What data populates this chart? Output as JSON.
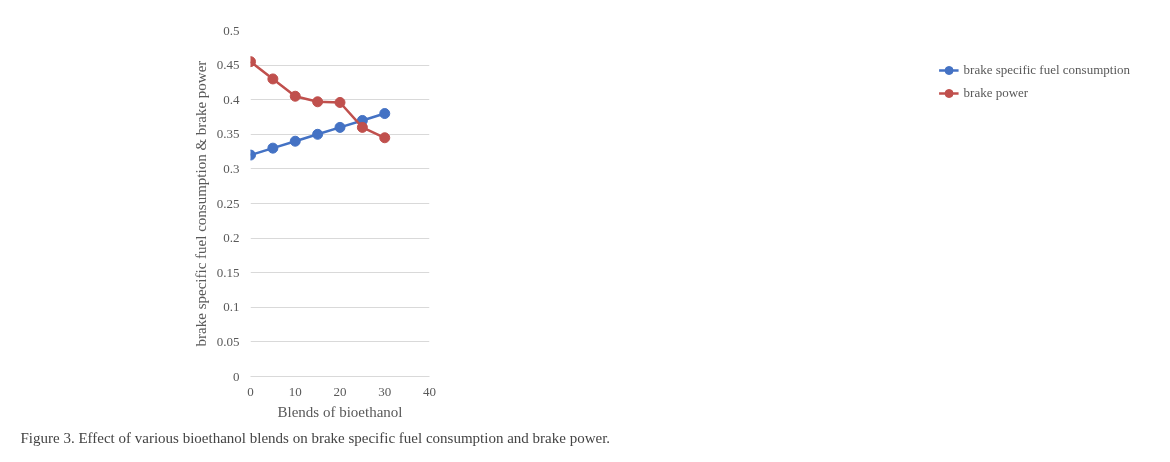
{
  "chart_data": {
    "type": "line",
    "xlabel": "Blends of bioethanol",
    "ylabel": "brake specific fuel consumption & brake power",
    "x": [
      0,
      5,
      10,
      15,
      20,
      25,
      30
    ],
    "series": [
      {
        "name": "brake specific fuel consumption",
        "color": "#4472c4",
        "values": [
          0.32,
          0.33,
          0.34,
          0.35,
          0.36,
          0.37,
          0.38
        ]
      },
      {
        "name": "brake power",
        "color": "#c0504d",
        "values": [
          0.455,
          0.43,
          0.405,
          0.397,
          0.396,
          0.36,
          0.345
        ]
      }
    ],
    "xlim": [
      0,
      40
    ],
    "xticks": [
      0,
      10,
      20,
      30,
      40
    ],
    "ylim": [
      0,
      0.5
    ],
    "yticks": [
      0,
      0.05,
      0.1,
      0.15,
      0.2,
      0.25,
      0.3,
      0.35,
      0.4,
      0.45,
      0.5
    ],
    "grid": "y",
    "legend": "right",
    "marker": "circle",
    "line_style": "solid",
    "annotations": [
      "Figure 3. Effect of various bioethanol blends on brake specific fuel consumption and brake power."
    ]
  }
}
